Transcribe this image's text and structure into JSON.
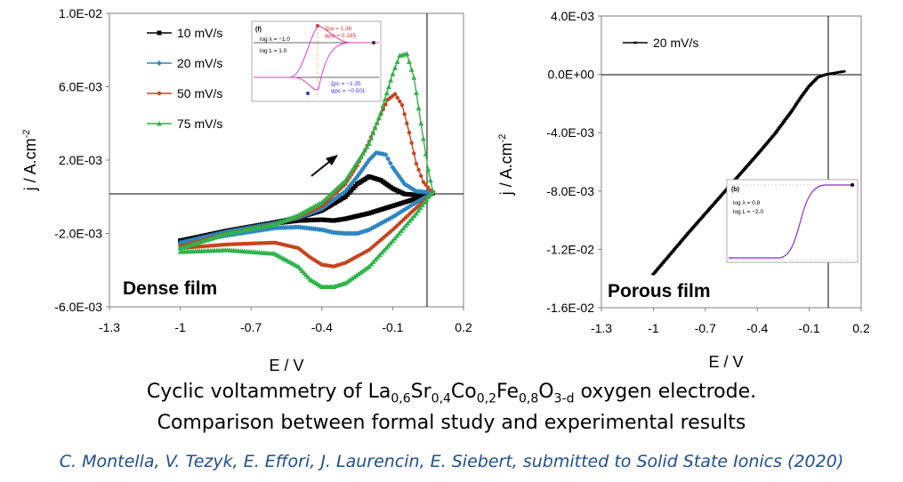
{
  "chart_data": [
    {
      "type": "line",
      "panel_label": "Dense film",
      "xlabel": "E / V",
      "ylabel": "j / A.cm",
      "ylabel_sup": "-2",
      "xlim": [
        -1.3,
        0.2
      ],
      "ylim": [
        -0.006,
        0.01
      ],
      "x_ticks": [
        "-1.3",
        "-1",
        "-0.7",
        "-0.4",
        "-0.1",
        "0.2"
      ],
      "y_ticks": [
        "1.0E-02",
        "6.0E-03",
        "2.0E-03",
        "-2.0E-03",
        "-6.0E-03"
      ],
      "y_tick_values": [
        0.01,
        0.006,
        0.002,
        -0.002,
        -0.006
      ],
      "grid": false,
      "legend_position": "top-left",
      "reference_lines": {
        "x": 0,
        "y": 0
      },
      "series": [
        {
          "name": "10 mV/s",
          "color": "#000000",
          "marker": "square",
          "forward_x": [
            -1.0,
            -0.8,
            -0.6,
            -0.5,
            -0.4,
            -0.3,
            -0.25,
            -0.2,
            -0.15,
            -0.1,
            -0.05,
            0.0,
            0.05,
            0.07
          ],
          "forward_y": [
            -0.0024,
            -0.00185,
            -0.0014,
            -0.00115,
            -0.00075,
            0.0,
            0.0007,
            0.0011,
            0.0009,
            0.00045,
            0.00015,
            0.0001,
            0.0001,
            0.0002
          ],
          "reverse_x": [
            0.07,
            0.0,
            -0.1,
            -0.2,
            -0.3,
            -0.35,
            -0.4,
            -0.5,
            -0.6,
            -0.8,
            -1.0
          ],
          "reverse_y": [
            0.0002,
            -0.0001,
            -0.0005,
            -0.0009,
            -0.0012,
            -0.0013,
            -0.00125,
            -0.0013,
            -0.00145,
            -0.0019,
            -0.0024
          ]
        },
        {
          "name": "20 mV/s",
          "color": "#2e86c1",
          "marker": "diamond",
          "forward_x": [
            -1.0,
            -0.8,
            -0.6,
            -0.5,
            -0.4,
            -0.3,
            -0.25,
            -0.2,
            -0.17,
            -0.13,
            -0.1,
            -0.05,
            0.0,
            0.05,
            0.07
          ],
          "forward_y": [
            -0.0025,
            -0.0019,
            -0.00145,
            -0.00115,
            -0.00065,
            0.0003,
            0.0011,
            0.002,
            0.0024,
            0.0023,
            0.0016,
            0.0007,
            0.0003,
            0.00025,
            0.0002
          ],
          "reverse_x": [
            0.07,
            0.0,
            -0.1,
            -0.2,
            -0.25,
            -0.3,
            -0.35,
            -0.4,
            -0.5,
            -0.6,
            -0.8,
            -1.0
          ],
          "reverse_y": [
            0.0002,
            -0.0003,
            -0.0011,
            -0.0018,
            -0.002,
            -0.002,
            -0.00195,
            -0.0018,
            -0.00165,
            -0.0017,
            -0.0021,
            -0.0026
          ]
        },
        {
          "name": "50 mV/s",
          "color": "#c8431e",
          "marker": "circle",
          "forward_x": [
            -1.0,
            -0.8,
            -0.6,
            -0.5,
            -0.4,
            -0.3,
            -0.25,
            -0.2,
            -0.15,
            -0.12,
            -0.09,
            -0.06,
            -0.03,
            0.0,
            0.03,
            0.07
          ],
          "forward_y": [
            -0.0027,
            -0.002,
            -0.0015,
            -0.0011,
            -0.0005,
            0.0007,
            0.0017,
            0.003,
            0.0045,
            0.0053,
            0.0056,
            0.005,
            0.0035,
            0.0018,
            0.0008,
            0.0002
          ],
          "reverse_x": [
            0.07,
            0.0,
            -0.1,
            -0.2,
            -0.3,
            -0.35,
            -0.4,
            -0.45,
            -0.5,
            -0.6,
            -0.8,
            -1.0
          ],
          "reverse_y": [
            0.0002,
            -0.0006,
            -0.0018,
            -0.0029,
            -0.0036,
            -0.0038,
            -0.0037,
            -0.0033,
            -0.0028,
            -0.0025,
            -0.0026,
            -0.0028
          ]
        },
        {
          "name": "75 mV/s",
          "color": "#2eb34a",
          "marker": "triangle",
          "forward_x": [
            -1.0,
            -0.8,
            -0.6,
            -0.5,
            -0.4,
            -0.3,
            -0.2,
            -0.15,
            -0.1,
            -0.07,
            -0.04,
            -0.01,
            0.02,
            0.05,
            0.07
          ],
          "forward_y": [
            -0.0028,
            -0.002,
            -0.0015,
            -0.001,
            -0.0003,
            0.0009,
            0.0029,
            0.0046,
            0.0067,
            0.0077,
            0.0078,
            0.0065,
            0.004,
            0.0015,
            0.0003
          ],
          "reverse_x": [
            0.07,
            0.0,
            -0.1,
            -0.2,
            -0.3,
            -0.35,
            -0.4,
            -0.45,
            -0.5,
            -0.6,
            -0.8,
            -1.0
          ],
          "reverse_y": [
            0.0003,
            -0.0009,
            -0.0024,
            -0.0038,
            -0.0047,
            -0.0049,
            -0.0049,
            -0.0045,
            -0.0038,
            -0.0031,
            -0.0029,
            -0.003
          ]
        }
      ],
      "inset": {
        "label": "(f)",
        "params": [
          "log λ = −1.0",
          "log L = 1.0"
        ],
        "upper_peak": [
          "ξpa = 1.36",
          "φpa = 0.185"
        ],
        "lower_peak": [
          "ξpc = −1.35",
          "φpc = −0.501"
        ],
        "colors": {
          "forward": "#333333",
          "reverse": "#e040c0",
          "peak_upper": "#e03030",
          "peak_lower": "#3030e0"
        }
      }
    },
    {
      "type": "line",
      "panel_label": "Porous film",
      "xlabel": "E / V",
      "ylabel": "j / A.cm",
      "ylabel_sup": "-2",
      "xlim": [
        -1.3,
        0.2
      ],
      "ylim": [
        -0.016,
        0.004
      ],
      "x_ticks": [
        "-1.3",
        "-1",
        "-0.7",
        "-0.4",
        "-0.1",
        "0.2"
      ],
      "y_ticks": [
        "4.0E-03",
        "0.0E+00",
        "-4.0E-03",
        "-8.0E-03",
        "-1.2E-02",
        "-1.6E-02"
      ],
      "y_tick_values": [
        0.004,
        0.0,
        -0.004,
        -0.008,
        -0.012,
        -0.016
      ],
      "grid": false,
      "legend_position": "top-left",
      "reference_lines": {
        "x": 0,
        "y": 0
      },
      "series": [
        {
          "name": "20 mV/s",
          "color": "#000000",
          "marker": "dash",
          "x": [
            -1.0,
            -0.8,
            -0.6,
            -0.4,
            -0.3,
            -0.2,
            -0.15,
            -0.1,
            -0.05,
            0.0,
            0.05,
            0.1
          ],
          "y": [
            -0.0137,
            -0.0109,
            -0.0082,
            -0.0055,
            -0.0041,
            -0.0025,
            -0.0016,
            -0.0008,
            -0.0002,
            0.0,
            0.0001,
            0.0002
          ]
        }
      ],
      "inset": {
        "label": "(b)",
        "params": [
          "log λ = 0.8",
          "log L = −2.0"
        ],
        "colors": {
          "curve": "#8a2be2"
        }
      }
    }
  ],
  "caption": {
    "line1_prefix": "Cyclic voltammetry of ",
    "formula": [
      {
        "t": "La",
        "s": "0,6"
      },
      {
        "t": "Sr",
        "s": "0,4"
      },
      {
        "t": "Co",
        "s": "0,2"
      },
      {
        "t": "Fe",
        "s": "0,8"
      },
      {
        "t": "O",
        "s": "3-d"
      }
    ],
    "line1_suffix": " oxygen electrode.",
    "line2": "Comparison between formal study and experimental results"
  },
  "citation": "C. Montella, V. Tezyk, E. Effori, J. Laurencin, E. Siebert, submitted to Solid State Ionics (2020)"
}
